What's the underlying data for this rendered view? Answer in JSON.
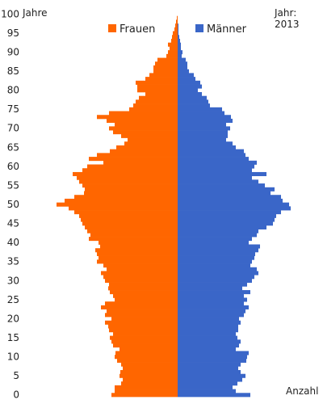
{
  "chart_data": {
    "type": "bar",
    "orientation": "horizontal",
    "layout": "population-pyramid",
    "y_axis_label": "Jahre",
    "x_axis_label": "Anzahl",
    "year_label": "Jahr:",
    "year_value": "2013",
    "y_ticks": [
      0,
      5,
      10,
      15,
      20,
      25,
      30,
      35,
      40,
      45,
      50,
      55,
      60,
      65,
      70,
      75,
      80,
      85,
      90,
      95,
      100
    ],
    "ylim": [
      0,
      100
    ],
    "xlim": [
      -160,
      160
    ],
    "x_tick_labels_shown": false,
    "grid": false,
    "legend_position": "top",
    "series": [
      {
        "name": "Frauen",
        "color": "#ff6600",
        "side": "left",
        "values": [
          82,
          78,
          78,
          70,
          68,
          72,
          71,
          68,
          70,
          75,
          78,
          77,
          72,
          80,
          82,
          84,
          80,
          85,
          86,
          90,
          82,
          90,
          88,
          95,
          90,
          78,
          80,
          84,
          86,
          85,
          90,
          92,
          95,
          88,
          92,
          100,
          98,
          100,
          102,
          96,
          98,
          110,
          108,
          112,
          115,
          118,
          120,
          122,
          128,
          135,
          150,
          140,
          128,
          116,
          115,
          118,
          122,
          125,
          130,
          118,
          112,
          92,
          110,
          100,
          84,
          76,
          66,
          62,
          70,
          80,
          85,
          78,
          88,
          100,
          85,
          60,
          55,
          52,
          48,
          40,
          50,
          50,
          52,
          40,
          35,
          30,
          30,
          28,
          25,
          14,
          12,
          10,
          12,
          8,
          7,
          6,
          4,
          3,
          2,
          1,
          0
        ]
      },
      {
        "name": "Männer",
        "color": "#3a66c8",
        "side": "right",
        "values": [
          90,
          72,
          68,
          74,
          80,
          84,
          78,
          75,
          78,
          85,
          86,
          88,
          72,
          76,
          78,
          74,
          72,
          75,
          75,
          78,
          76,
          82,
          84,
          88,
          82,
          86,
          82,
          90,
          80,
          86,
          92,
          95,
          100,
          98,
          90,
          92,
          95,
          96,
          100,
          102,
          88,
          92,
          98,
          100,
          110,
          118,
          120,
          122,
          128,
          140,
          138,
          130,
          128,
          115,
          120,
          108,
          100,
          92,
          110,
          92,
          95,
          98,
          88,
          84,
          82,
          72,
          68,
          60,
          62,
          62,
          65,
          60,
          68,
          66,
          58,
          55,
          40,
          38,
          36,
          30,
          25,
          30,
          28,
          22,
          20,
          14,
          12,
          12,
          10,
          5,
          6,
          4,
          4,
          3,
          2,
          1,
          1,
          1,
          0,
          0,
          0
        ]
      }
    ]
  }
}
